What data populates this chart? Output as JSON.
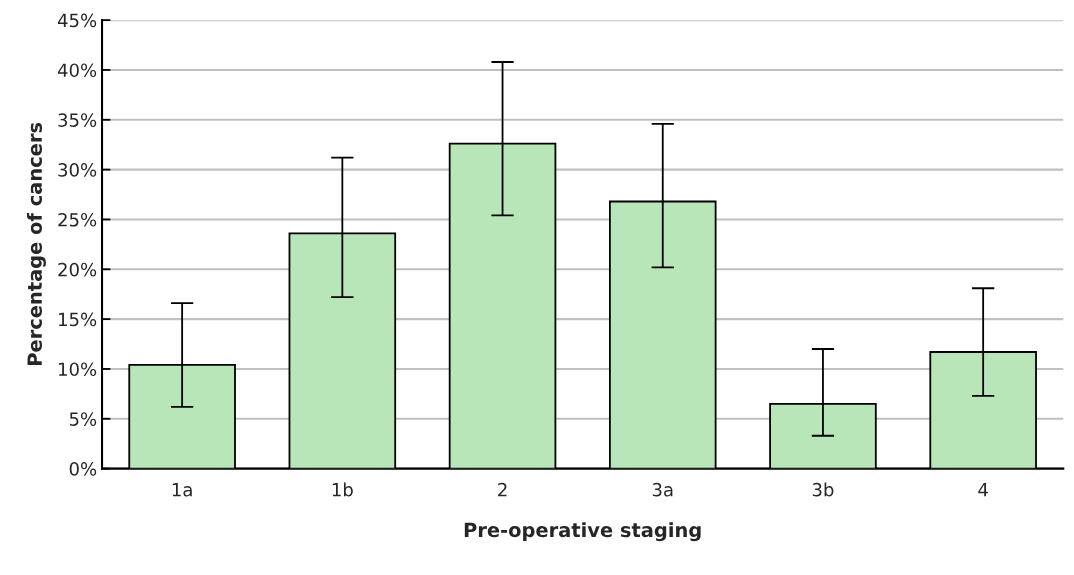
{
  "chart_data": {
    "type": "bar",
    "xlabel": "Pre-operative staging",
    "ylabel": "Percentage of cancers",
    "categories": [
      "1a",
      "1b",
      "2",
      "3a",
      "3b",
      "4"
    ],
    "values": [
      10.4,
      23.6,
      32.6,
      26.8,
      6.5,
      11.7
    ],
    "errors": [
      [
        6.2,
        16.6
      ],
      [
        17.2,
        31.2
      ],
      [
        25.4,
        40.8
      ],
      [
        20.2,
        34.6
      ],
      [
        3.3,
        12.0
      ],
      [
        7.3,
        18.1
      ]
    ],
    "color": "#b8e6b8",
    "ylim": [
      0,
      45
    ],
    "yticks": [
      {
        "value": 0,
        "label": "0%"
      },
      {
        "value": 5,
        "label": "5%"
      },
      {
        "value": 10,
        "label": "10%"
      },
      {
        "value": 15,
        "label": "15%"
      },
      {
        "value": 20,
        "label": "20%"
      },
      {
        "value": 25,
        "label": "25%"
      },
      {
        "value": 30,
        "label": "30%"
      },
      {
        "value": 35,
        "label": "35%"
      },
      {
        "value": 40,
        "label": "40%"
      },
      {
        "value": 45,
        "label": "45%"
      }
    ],
    "grid": "y"
  }
}
